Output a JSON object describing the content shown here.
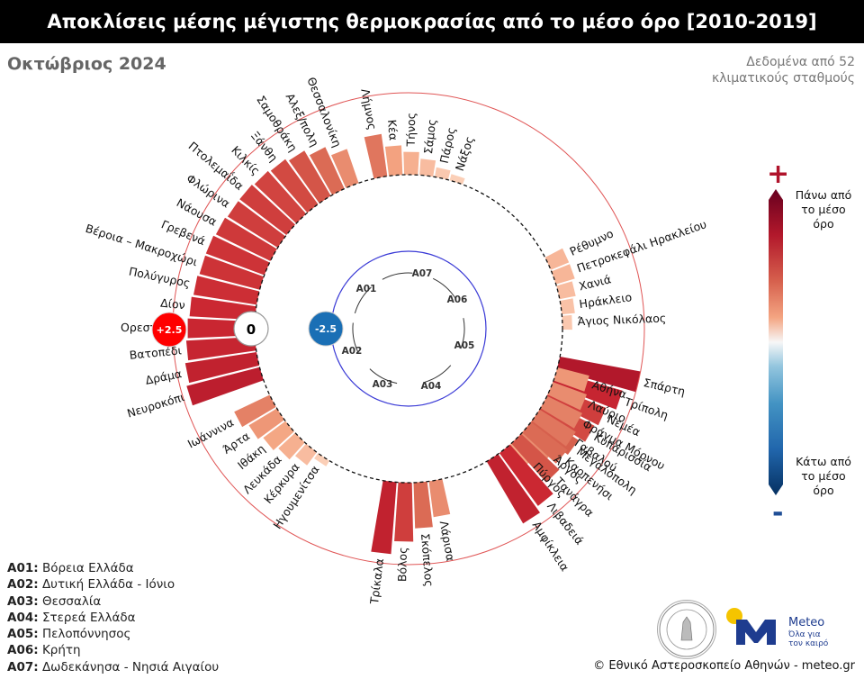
{
  "header": {
    "title": "Αποκλίσεις μέσης μέγιστης θερμοκρασίας από το μέσο όρο [2010-2019]",
    "subtitle": "Οκτώβριος 2024",
    "note": "Δεδομένα από 52 κλιματικούς σταθμούς"
  },
  "colorbar": {
    "plus": "+",
    "minus": "-",
    "top_label": "Πάνω από το μέσο όρο",
    "bottom_label": "Κάτω από το μέσο όρο",
    "high_color": "#67001f",
    "low_color": "#053061"
  },
  "scale_badges": [
    {
      "label": "+2.5",
      "color": "#ff0000"
    },
    {
      "label": "0",
      "color": "#ffffff"
    },
    {
      "label": "-2.5",
      "color": "#1a6fb5"
    }
  ],
  "region_codes": [
    "A01",
    "A02",
    "A03",
    "A04",
    "A05",
    "A06",
    "A07"
  ],
  "regions": [
    {
      "code": "A01:",
      "name": "Βόρεια Ελλάδα"
    },
    {
      "code": "A02:",
      "name": "Δυτική Ελλάδα - Ιόνιο"
    },
    {
      "code": "A03:",
      "name": "Θεσσαλία"
    },
    {
      "code": "A04:",
      "name": "Στερεά Ελλάδα"
    },
    {
      "code": "A05:",
      "name": "Πελοπόννησος"
    },
    {
      "code": "A06:",
      "name": "Κρήτη"
    },
    {
      "code": "A07:",
      "name": "Δωδεκάνησα - Νησιά Αιγαίου"
    }
  ],
  "credit": "© Εθνικό Αστεροσκοπείο Αθηνών - meteo.gr",
  "logo": {
    "name": "Meteo",
    "tagline1": "Όλα για",
    "tagline2": "τον καιρό"
  },
  "chart_data": {
    "type": "bar",
    "layout": "radial",
    "rlim": [
      -2.5,
      2.5
    ],
    "series": [
      {
        "name": "Νευροκόπι",
        "region": "A01",
        "value": 2.3
      },
      {
        "name": "Δράμα",
        "region": "A01",
        "value": 2.2
      },
      {
        "name": "Βατοπέδι",
        "region": "A01",
        "value": 2.1
      },
      {
        "name": "Ορεστιάδα",
        "region": "A01",
        "value": 2.05
      },
      {
        "name": "Δίον",
        "region": "A01",
        "value": 2.0
      },
      {
        "name": "Πολύγυρος",
        "region": "A01",
        "value": 1.95
      },
      {
        "name": "Βέροια – Μακροχώρι",
        "region": "A01",
        "value": 1.9
      },
      {
        "name": "Γρεβενά",
        "region": "A01",
        "value": 1.9
      },
      {
        "name": "Νάουσα",
        "region": "A01",
        "value": 1.85
      },
      {
        "name": "Φλώρινα",
        "region": "A01",
        "value": 1.8
      },
      {
        "name": "Πτολεμαΐδα",
        "region": "A01",
        "value": 1.8
      },
      {
        "name": "Κιλκίς",
        "region": "A01",
        "value": 1.75
      },
      {
        "name": "Ξάνθη",
        "region": "A01",
        "value": 1.7
      },
      {
        "name": "Σαμοθράκη",
        "region": "A01",
        "value": 1.6
      },
      {
        "name": "Αλεξ/πολη",
        "region": "A01",
        "value": 1.4
      },
      {
        "name": "Θεσσαλονίκη",
        "region": "A01",
        "value": 1.1
      },
      {
        "name": "Λήμνος",
        "region": "A07",
        "value": 1.3
      },
      {
        "name": "Κέα",
        "region": "A07",
        "value": 0.9
      },
      {
        "name": "Τήνος",
        "region": "A07",
        "value": 0.7
      },
      {
        "name": "Σάμος",
        "region": "A07",
        "value": 0.5
      },
      {
        "name": "Πάρος",
        "region": "A07",
        "value": 0.3
      },
      {
        "name": "Νάξος",
        "region": "A07",
        "value": 0.2
      },
      {
        "name": "Ρέθυμνο",
        "region": "A06",
        "value": 0.6
      },
      {
        "name": "Πετροκεφάλι Ηρακλείου",
        "region": "A06",
        "value": 0.6
      },
      {
        "name": "Χανιά",
        "region": "A06",
        "value": 0.5
      },
      {
        "name": "Ηράκλειο",
        "region": "A06",
        "value": 0.4
      },
      {
        "name": "Άγιος Νικόλαος",
        "region": "A06",
        "value": 0.3
      },
      {
        "name": "Σπάρτη",
        "region": "A05",
        "value": 2.5
      },
      {
        "name": "Τρίπολη",
        "region": "A05",
        "value": 2.1
      },
      {
        "name": "Νεμέα",
        "region": "A05",
        "value": 1.8
      },
      {
        "name": "Κυπαρισσία",
        "region": "A05",
        "value": 1.7
      },
      {
        "name": "Μεγαλόπολη",
        "region": "A05",
        "value": 1.5
      },
      {
        "name": "Άργος",
        "region": "A05",
        "value": 1.1
      },
      {
        "name": "Πύργος",
        "region": "A05",
        "value": 0.8
      },
      {
        "name": "Αμφίκλεια",
        "region": "A04",
        "value": 2.2
      },
      {
        "name": "Λιβαδειά",
        "region": "A04",
        "value": 2.0
      },
      {
        "name": "Τανάγρα",
        "region": "A04",
        "value": 1.6
      },
      {
        "name": "Καρπενήσι",
        "region": "A04",
        "value": 1.4
      },
      {
        "name": "Γαβαλού",
        "region": "A04",
        "value": 1.3
      },
      {
        "name": "Φράγμα Μόρνου",
        "region": "A04",
        "value": 1.2
      },
      {
        "name": "Λαύριο",
        "region": "A04",
        "value": 1.1
      },
      {
        "name": "Αθήνα",
        "region": "A04",
        "value": 1.0
      },
      {
        "name": "Τρίκαλα",
        "region": "A03",
        "value": 2.2
      },
      {
        "name": "Βόλος",
        "region": "A03",
        "value": 1.8
      },
      {
        "name": "Σκόπελος",
        "region": "A03",
        "value": 1.4
      },
      {
        "name": "Λάρισα",
        "region": "A03",
        "value": 1.1
      },
      {
        "name": "Ιωάννινα",
        "region": "A02",
        "value": 1.2
      },
      {
        "name": "Άρτα",
        "region": "A02",
        "value": 1.0
      },
      {
        "name": "Ιθάκη",
        "region": "A02",
        "value": 0.85
      },
      {
        "name": "Λευκάδα",
        "region": "A02",
        "value": 0.7
      },
      {
        "name": "Κέρκυρα",
        "region": "A02",
        "value": 0.5
      },
      {
        "name": "Ηγουμενίτσα",
        "region": "A02",
        "value": 0.2
      }
    ]
  }
}
